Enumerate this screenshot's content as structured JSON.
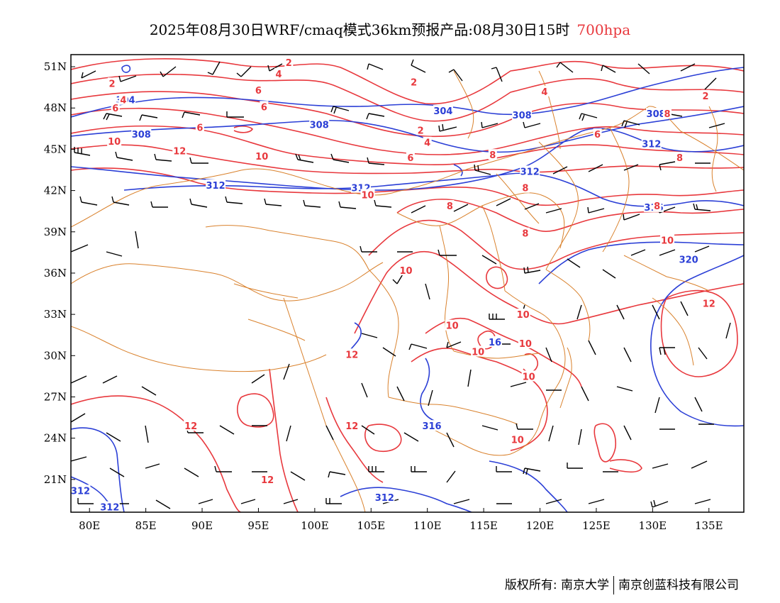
{
  "title": {
    "main": "2025年08月30日WRF/cmaq模式36km预报产品:08月30日15时",
    "level": "700hpa",
    "level_color": "#e8383d"
  },
  "axes": {
    "lat_labels": [
      "51N",
      "48N",
      "45N",
      "42N",
      "39N",
      "36N",
      "33N",
      "30N",
      "27N",
      "24N",
      "21N"
    ],
    "lon_labels": [
      "80E",
      "85E",
      "90E",
      "95E",
      "100E",
      "105E",
      "110E",
      "115E",
      "120E",
      "125E",
      "130E",
      "135E"
    ]
  },
  "colors": {
    "geopotential": "#2b3fd6",
    "temperature": "#e8383d",
    "boundaries": "#d9812c",
    "wind_barbs": "#000000"
  },
  "map_content": {
    "geopotential_contour_labels": [
      {
        "text": "304",
        "lon": 83.2,
        "lat": 48.6
      },
      {
        "text": "304",
        "lon": 111.4,
        "lat": 47.8
      },
      {
        "text": "308",
        "lon": 84.6,
        "lat": 46.1
      },
      {
        "text": "308",
        "lon": 100.4,
        "lat": 46.8
      },
      {
        "text": "308",
        "lon": 118.4,
        "lat": 47.5
      },
      {
        "text": "308",
        "lon": 130.3,
        "lat": 47.6
      },
      {
        "text": "312",
        "lon": 91.2,
        "lat": 42.4
      },
      {
        "text": "312",
        "lon": 104.1,
        "lat": 42.2
      },
      {
        "text": "312",
        "lon": 119.1,
        "lat": 43.4
      },
      {
        "text": "312",
        "lon": 129.9,
        "lat": 45.4
      },
      {
        "text": "316",
        "lon": 130.1,
        "lat": 40.8
      },
      {
        "text": "320",
        "lon": 133.2,
        "lat": 37.0
      },
      {
        "text": "316",
        "lon": 110.4,
        "lat": 24.9
      },
      {
        "text": "312",
        "lon": 79.2,
        "lat": 20.2
      },
      {
        "text": "312",
        "lon": 81.8,
        "lat": 19.0
      },
      {
        "text": "312",
        "lon": 106.2,
        "lat": 19.7
      },
      {
        "text": "16",
        "lon": 116.0,
        "lat": 31.0
      }
    ],
    "temperature_contour_labels": [
      {
        "text": "2",
        "lon": 82.0,
        "lat": 49.8
      },
      {
        "text": "4",
        "lon": 83.0,
        "lat": 48.6
      },
      {
        "text": "6",
        "lon": 82.3,
        "lat": 48.0
      },
      {
        "text": "2",
        "lon": 97.7,
        "lat": 51.3
      },
      {
        "text": "4",
        "lon": 96.8,
        "lat": 50.5
      },
      {
        "text": "6",
        "lon": 95.0,
        "lat": 49.3
      },
      {
        "text": "6",
        "lon": 95.5,
        "lat": 48.1
      },
      {
        "text": "6",
        "lon": 89.8,
        "lat": 46.6
      },
      {
        "text": "10",
        "lon": 82.2,
        "lat": 45.6
      },
      {
        "text": "12",
        "lon": 88.0,
        "lat": 44.9
      },
      {
        "text": "10",
        "lon": 95.3,
        "lat": 44.5
      },
      {
        "text": "2",
        "lon": 108.8,
        "lat": 49.9
      },
      {
        "text": "2",
        "lon": 109.4,
        "lat": 46.4
      },
      {
        "text": "4",
        "lon": 110.0,
        "lat": 45.5
      },
      {
        "text": "6",
        "lon": 108.5,
        "lat": 44.4
      },
      {
        "text": "8",
        "lon": 115.8,
        "lat": 44.6
      },
      {
        "text": "4",
        "lon": 120.4,
        "lat": 49.2
      },
      {
        "text": "6",
        "lon": 125.1,
        "lat": 46.1
      },
      {
        "text": "2",
        "lon": 134.7,
        "lat": 48.9
      },
      {
        "text": "8",
        "lon": 131.3,
        "lat": 47.6
      },
      {
        "text": "8",
        "lon": 132.4,
        "lat": 44.4
      },
      {
        "text": "10",
        "lon": 104.7,
        "lat": 41.7
      },
      {
        "text": "8",
        "lon": 112.0,
        "lat": 40.9
      },
      {
        "text": "8",
        "lon": 118.7,
        "lat": 42.2
      },
      {
        "text": "8",
        "lon": 118.7,
        "lat": 38.9
      },
      {
        "text": "8",
        "lon": 130.4,
        "lat": 40.9
      },
      {
        "text": "10",
        "lon": 131.3,
        "lat": 38.4
      },
      {
        "text": "10",
        "lon": 108.1,
        "lat": 36.2
      },
      {
        "text": "10",
        "lon": 118.5,
        "lat": 33.0
      },
      {
        "text": "10",
        "lon": 112.2,
        "lat": 32.2
      },
      {
        "text": "10",
        "lon": 114.5,
        "lat": 30.3
      },
      {
        "text": "10",
        "lon": 118.7,
        "lat": 30.9
      },
      {
        "text": "10",
        "lon": 119.0,
        "lat": 28.5
      },
      {
        "text": "12",
        "lon": 135.0,
        "lat": 33.8
      },
      {
        "text": "12",
        "lon": 103.3,
        "lat": 30.1
      },
      {
        "text": "12",
        "lon": 89.0,
        "lat": 24.9
      },
      {
        "text": "12",
        "lon": 103.3,
        "lat": 24.9
      },
      {
        "text": "12",
        "lon": 95.8,
        "lat": 21.0
      },
      {
        "text": "10",
        "lon": 118.0,
        "lat": 23.9
      }
    ]
  },
  "footer": {
    "left": "版权所有: 南京大学",
    "right": "南京创蓝科技有限公司"
  }
}
